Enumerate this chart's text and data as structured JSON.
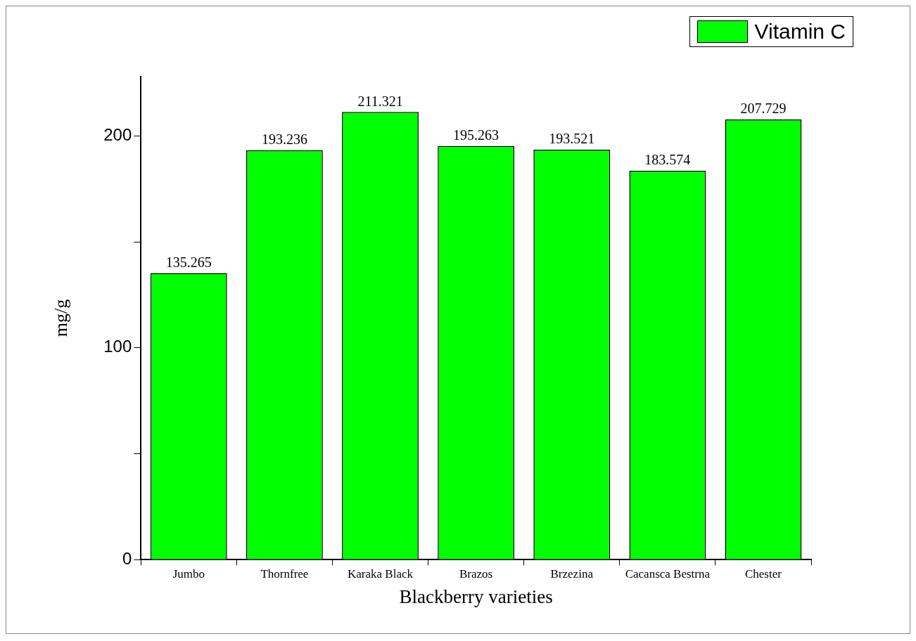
{
  "chart_data": {
    "type": "bar",
    "xlabel": "Blackberry varieties",
    "ylabel": "mg/g",
    "categories": [
      "Jumbo",
      "Thornfree",
      "Karaka Black",
      "Brazos",
      "Brzezina",
      "Cacansca Bestrna",
      "Chester"
    ],
    "series": [
      {
        "name": "Vitamin C",
        "color": "#00ff00",
        "values": [
          135.265,
          193.236,
          211.321,
          195.263,
          193.521,
          183.574,
          207.729
        ]
      }
    ],
    "ylim": [
      0,
      228
    ],
    "yticks": [
      0,
      {
        "value": 50,
        "label": null
      },
      100,
      {
        "value": 150,
        "label": null
      },
      200
    ],
    "data_labels": true,
    "grid": false,
    "legend": "top right"
  }
}
